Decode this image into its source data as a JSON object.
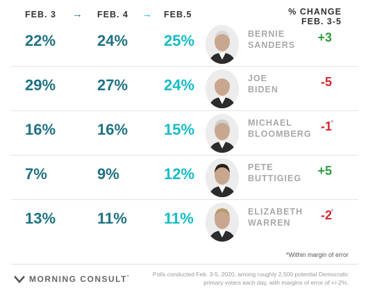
{
  "header": {
    "dates": [
      "FEB. 3",
      "FEB. 4",
      "FEB.5"
    ],
    "arrow": "→",
    "change_line1": "% CHANGE",
    "change_line2": "FEB. 3-5"
  },
  "chart_data": {
    "type": "table",
    "columns": [
      "FEB. 3",
      "FEB. 4",
      "FEB.5",
      "% CHANGE FEB. 3-5"
    ],
    "rows": [
      {
        "first": "BERNIE",
        "last": "SANDERS",
        "values": [
          "22%",
          "24%",
          "25%"
        ],
        "change": "+3",
        "change_dir": "pos",
        "star": ""
      },
      {
        "first": "JOE",
        "last": "BIDEN",
        "values": [
          "29%",
          "27%",
          "24%"
        ],
        "change": "-5",
        "change_dir": "neg",
        "star": ""
      },
      {
        "first": "MICHAEL",
        "last": "BLOOMBERG",
        "values": [
          "16%",
          "16%",
          "15%"
        ],
        "change": "-1",
        "change_dir": "neg",
        "star": "*"
      },
      {
        "first": "PETE",
        "last": "BUTTIGIEG",
        "values": [
          "7%",
          "9%",
          "12%"
        ],
        "change": "+5",
        "change_dir": "pos",
        "star": ""
      },
      {
        "first": "ELIZABETH",
        "last": "WARREN",
        "values": [
          "13%",
          "11%",
          "11%"
        ],
        "change": "-2",
        "change_dir": "neg",
        "star": "*"
      }
    ]
  },
  "colors": {
    "early": "#1e7183",
    "latest": "#14bcc6",
    "positive": "#2e9e3a",
    "negative": "#d6262c"
  },
  "footnote": "*Within margin of error",
  "logo": {
    "text": "MORNING CONSULT",
    "mark": "˚",
    "icon": "morning-consult-logo-icon"
  },
  "source": "Polls conducted Feb. 3-5, 2020, among roughly 2,500 potential Democratic primary voters each day, with margins of error of +/-2%."
}
